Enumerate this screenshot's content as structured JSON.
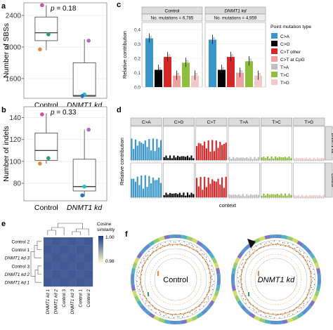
{
  "panels": {
    "a": "a",
    "b": "b",
    "c": "c",
    "d": "d",
    "e": "e",
    "f": "f"
  },
  "colors": {
    "C>A": "#3a96c8",
    "C>G": "#000000",
    "C>T other": "#d62728",
    "C>T at CpG": "#f0a0a0",
    "T>A": "#bfbfbf",
    "T>C": "#8fbf3a",
    "T>G": "#f2c9c9",
    "heat_low": "#fbf5c6",
    "heat_high": "#1f3d8f",
    "point_orange": "#e8873a",
    "point_green": "#2e9e6b",
    "point_purple": "#b565c9",
    "point_teal": "#27c0c8",
    "point_magenta": "#cc4fa0",
    "point_blue": "#2a6fbf"
  },
  "chart_data": [
    {
      "id": "a",
      "type": "box",
      "ylabel": "Number of SBSs",
      "categories": [
        "Control",
        "DNMT1 kd"
      ],
      "category_italic": [
        false,
        true
      ],
      "annotation": "p = 0.18",
      "yticks": [
        1600,
        2000,
        2400
      ],
      "ylim": [
        1350,
        2560
      ],
      "boxes": [
        {
          "min": 1960,
          "q1": 2080,
          "median": 2180,
          "q3": 2380,
          "max": 2530
        },
        {
          "min": 1370,
          "q1": 1375,
          "median": 1385,
          "q3": 1800,
          "max": 2100
        }
      ],
      "points": [
        {
          "group": 0,
          "value": 2530,
          "color": "point_magenta"
        },
        {
          "group": 0,
          "value": 2160,
          "color": "point_green"
        },
        {
          "group": 0,
          "value": 1970,
          "color": "point_orange"
        },
        {
          "group": 1,
          "value": 2080,
          "color": "point_purple"
        },
        {
          "group": 1,
          "value": 1400,
          "color": "point_teal"
        },
        {
          "group": 1,
          "value": 1380,
          "color": "point_blue"
        }
      ]
    },
    {
      "id": "b",
      "type": "box",
      "ylabel": "Number of indels",
      "categories": [
        "Control",
        "DNMT1 kd"
      ],
      "category_italic": [
        false,
        true
      ],
      "annotation": "p = 0.33",
      "yticks": [
        80,
        100,
        120,
        140
      ],
      "ylim": [
        64,
        150
      ],
      "boxes": [
        {
          "min": 98,
          "q1": 101,
          "median": 110,
          "q3": 126,
          "max": 144
        },
        {
          "min": 68,
          "q1": 73,
          "median": 77,
          "q3": 102,
          "max": 129
        }
      ],
      "points": [
        {
          "group": 0,
          "value": 143,
          "color": "point_magenta"
        },
        {
          "group": 0,
          "value": 103,
          "color": "point_green"
        },
        {
          "group": 0,
          "value": 98,
          "color": "point_orange"
        },
        {
          "group": 1,
          "value": 129,
          "color": "point_purple"
        },
        {
          "group": 1,
          "value": 77,
          "color": "point_teal"
        },
        {
          "group": 1,
          "value": 69,
          "color": "point_blue"
        }
      ]
    },
    {
      "id": "c",
      "type": "bar",
      "ylabel": "Relative contribution",
      "yticks": [
        0.0,
        0.1,
        0.2,
        0.3,
        0.4
      ],
      "ylim": [
        0,
        0.45
      ],
      "facets": [
        {
          "title": "Control",
          "italic": false,
          "subtitle": "No. mutations = 6,785",
          "values": [
            0.34,
            0.12,
            0.21,
            0.08,
            0.17,
            0.08
          ]
        },
        {
          "title": "DNMT1 kd",
          "italic": true,
          "subtitle": "No. mutations = 4,959",
          "values": [
            0.33,
            0.12,
            0.21,
            0.1,
            0.18,
            0.08
          ]
        }
      ],
      "categories": [
        "C>A",
        "C>G",
        "C>T other",
        "C>T at CpG",
        "T>A",
        "T>C",
        "T>G"
      ],
      "legend_title": "Point mutation type",
      "legend_labels": [
        "C>A",
        "C>G",
        "C>T other",
        "C>T at CpG",
        "T>A",
        "T>C",
        "T>G"
      ]
    },
    {
      "id": "d",
      "type": "bar",
      "ylabel": "Relative contribution",
      "xlabel": "context",
      "columns": [
        "C>A",
        "C>G",
        "C>T",
        "T>A",
        "T>C",
        "T>G"
      ],
      "rows": [
        {
          "label": "DNMT1 kd",
          "italic": true
        },
        {
          "label": "Control",
          "italic": false
        }
      ],
      "profile_levels": [
        0.7,
        0.15,
        0.65,
        0.1,
        0.12,
        0.08
      ]
    },
    {
      "id": "e",
      "type": "heatmap",
      "legend_title": "Cosine similarity",
      "legend_ticks": [
        "1.00",
        "0.98"
      ],
      "rows": [
        "Control 2",
        "Control 1",
        "DNMT1 kd 3",
        "Control 3",
        "DNMT1 kd 2",
        "DNMT1 kd 1"
      ],
      "row_italic": [
        false,
        false,
        true,
        false,
        true,
        true
      ],
      "cols": [
        "DNMT1 kd 1",
        "DNMT1 kd 2",
        "Control 3",
        "DNMT1 kd 3",
        "Control 1",
        "Control 2"
      ],
      "col_italic": [
        true,
        true,
        false,
        true,
        false,
        false
      ]
    },
    {
      "id": "f",
      "type": "circos",
      "labels": [
        "Control",
        "DNMT1 kd"
      ],
      "label_italic": [
        false,
        true
      ]
    }
  ]
}
